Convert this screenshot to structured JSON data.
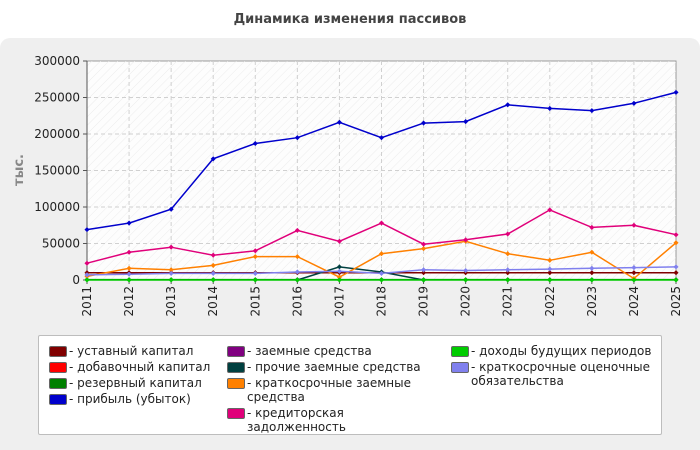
{
  "chart_data": {
    "type": "line",
    "title": "Динамика изменения пассивов",
    "ylabel": "тыс.",
    "xlabel": "",
    "x": [
      "2011",
      "2012",
      "2013",
      "2014",
      "2015",
      "2016",
      "2017",
      "2018",
      "2019",
      "2020",
      "2021",
      "2022",
      "2023",
      "2024",
      "2025"
    ],
    "ylim": [
      0,
      300000
    ],
    "yticks": [
      0,
      50000,
      100000,
      150000,
      200000,
      250000,
      300000
    ],
    "ytick_labels": [
      "0",
      "50000",
      "100000",
      "150000",
      "200000",
      "250000",
      "300000"
    ],
    "grid": true,
    "legend_position": "bottom",
    "series": [
      {
        "name": "- уставный капитал",
        "color": "#800000",
        "values": [
          10000,
          10000,
          10000,
          10000,
          10000,
          10000,
          10000,
          10000,
          10000,
          10000,
          10000,
          10000,
          10000,
          10000,
          10000
        ]
      },
      {
        "name": "- добавочный капитал",
        "color": "#ff0000",
        "values": [
          null,
          null,
          null,
          null,
          null,
          null,
          null,
          null,
          null,
          null,
          null,
          null,
          null,
          null,
          null
        ]
      },
      {
        "name": "- резервный капитал",
        "color": "#008000",
        "values": [
          500,
          500,
          500,
          500,
          500,
          500,
          500,
          500,
          500,
          500,
          500,
          500,
          500,
          500,
          500
        ]
      },
      {
        "name": "- прибыль (убыток)",
        "color": "#0000cc",
        "values": [
          69000,
          78000,
          97000,
          166000,
          187000,
          195000,
          216000,
          195000,
          215000,
          217000,
          240000,
          235000,
          232000,
          242000,
          257000
        ]
      },
      {
        "name": "- заемные средства",
        "color": "#800080",
        "values": [
          null,
          null,
          null,
          null,
          null,
          null,
          null,
          null,
          null,
          null,
          null,
          null,
          null,
          null,
          null
        ]
      },
      {
        "name": "- прочие заемные средства",
        "color": "#004040",
        "values": [
          null,
          null,
          null,
          null,
          null,
          0,
          18000,
          11000,
          0,
          null,
          null,
          null,
          null,
          null,
          null
        ]
      },
      {
        "name": "- краткосрочные заемные средства",
        "color": "#ff8000",
        "values": [
          5000,
          16000,
          14000,
          20000,
          32000,
          32000,
          4000,
          36000,
          43000,
          53000,
          36000,
          27000,
          38000,
          2000,
          51000
        ]
      },
      {
        "name": "- кредиторская задолженность",
        "color": "#e0007a",
        "values": [
          23000,
          38000,
          45000,
          34000,
          40000,
          68000,
          53000,
          78000,
          49000,
          55000,
          63000,
          96000,
          72000,
          75000,
          62000
        ]
      },
      {
        "name": "- доходы будущих периодов",
        "color": "#00cc00",
        "values": [
          0,
          0,
          0,
          0,
          0,
          0,
          0,
          0,
          0,
          0,
          0,
          0,
          0,
          0,
          0
        ]
      },
      {
        "name": "- краткосрочные оценочные обязательства",
        "color": "#8080ee",
        "values": [
          7000,
          8000,
          9000,
          9000,
          9000,
          11000,
          12000,
          9000,
          14000,
          13000,
          14000,
          15000,
          16000,
          17000,
          18000
        ]
      }
    ]
  }
}
